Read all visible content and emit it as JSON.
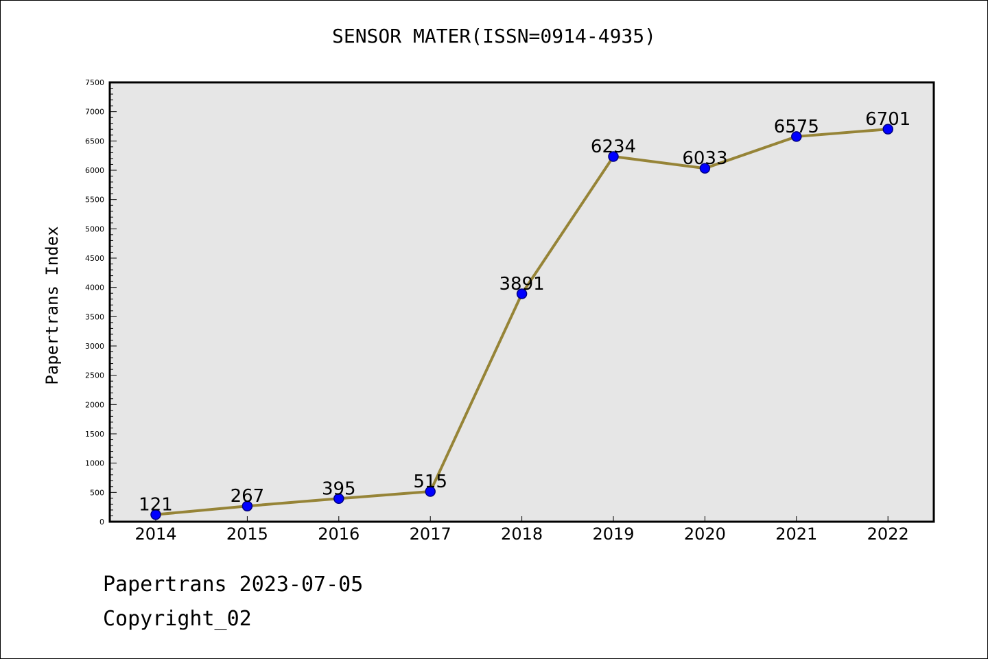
{
  "chart_data": {
    "type": "line",
    "title": "SENSOR MATER(ISSN=0914-4935)",
    "ylabel": "Papertrans Index",
    "xlabel": "",
    "categories": [
      "2014",
      "2015",
      "2016",
      "2017",
      "2018",
      "2019",
      "2020",
      "2021",
      "2022"
    ],
    "series": [
      {
        "values": [
          121,
          267,
          395,
          515,
          3891,
          6234,
          6033,
          6575,
          6701
        ],
        "data_labels": [
          "121",
          "267",
          "395",
          "515",
          "3891",
          "6234",
          "6033",
          "6575",
          "6701"
        ]
      }
    ],
    "ylim": [
      0,
      7500
    ],
    "yticks": [
      "0",
      "500",
      "1000",
      "1500",
      "2000",
      "2500",
      "3000",
      "3500",
      "4000",
      "4500",
      "5000",
      "5500",
      "6000",
      "6500",
      "7000",
      "7500"
    ],
    "grid": false,
    "colors": {
      "line": "#968437",
      "marker_fill": "#0000ff",
      "marker_edge": "#000080",
      "plot_background": "#e6e6e6"
    }
  },
  "footer": {
    "line1": "Papertrans 2023-07-05",
    "line2": "Copyright_02"
  }
}
